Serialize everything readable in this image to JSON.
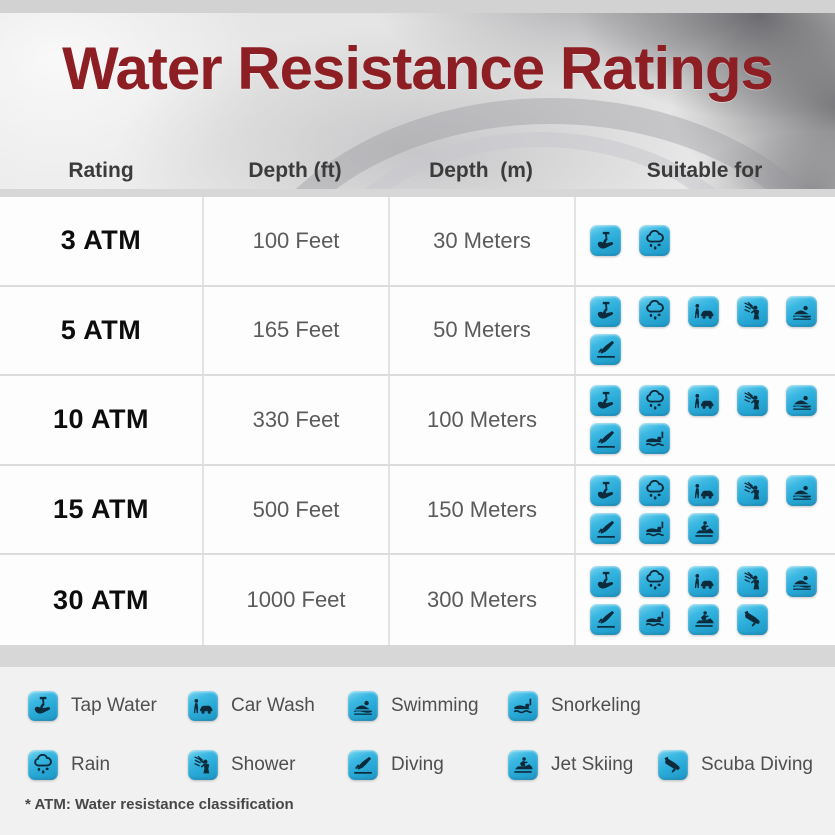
{
  "title": "Water Resistance Ratings",
  "table": {
    "headers": [
      "Rating",
      "Depth (ft)",
      "Depth  (m)",
      "Suitable for"
    ],
    "rows": [
      {
        "rating": "3 ATM",
        "depth_ft": "100 Feet",
        "depth_m": "30 Meters",
        "activities": [
          "tap-water",
          "rain"
        ]
      },
      {
        "rating": "5 ATM",
        "depth_ft": "165 Feet",
        "depth_m": "50 Meters",
        "activities": [
          "tap-water",
          "rain",
          "car-wash",
          "shower",
          "swimming",
          "diving"
        ]
      },
      {
        "rating": "10 ATM",
        "depth_ft": "330 Feet",
        "depth_m": "100 Meters",
        "activities": [
          "tap-water",
          "rain",
          "car-wash",
          "shower",
          "swimming",
          "diving",
          "snorkeling"
        ]
      },
      {
        "rating": "15 ATM",
        "depth_ft": "500 Feet",
        "depth_m": "150 Meters",
        "activities": [
          "tap-water",
          "rain",
          "car-wash",
          "shower",
          "swimming",
          "diving",
          "snorkeling",
          "jet-skiing"
        ]
      },
      {
        "rating": "30 ATM",
        "depth_ft": "1000 Feet",
        "depth_m": "300 Meters",
        "activities": [
          "tap-water",
          "rain",
          "car-wash",
          "shower",
          "swimming",
          "diving",
          "snorkeling",
          "jet-skiing",
          "scuba-diving"
        ]
      }
    ]
  },
  "legend": {
    "rows": [
      [
        {
          "icon": "tap-water",
          "label": "Tap Water"
        },
        {
          "icon": "car-wash",
          "label": "Car Wash"
        },
        {
          "icon": "swimming",
          "label": "Swimming"
        },
        {
          "icon": "snorkeling",
          "label": "Snorkeling"
        }
      ],
      [
        {
          "icon": "rain",
          "label": "Rain"
        },
        {
          "icon": "shower",
          "label": "Shower"
        },
        {
          "icon": "diving",
          "label": "Diving"
        },
        {
          "icon": "jet-skiing",
          "label": "Jet Skiing"
        },
        {
          "icon": "scuba-diving",
          "label": "Scuba Diving"
        }
      ]
    ]
  },
  "footnote": "* ATM: Water resistance classification",
  "colors": {
    "title": "#8d1f24",
    "icon_bg": "#2aabd8",
    "icon_glyph": "#0c2b3c",
    "band": "#d7d7d7"
  }
}
